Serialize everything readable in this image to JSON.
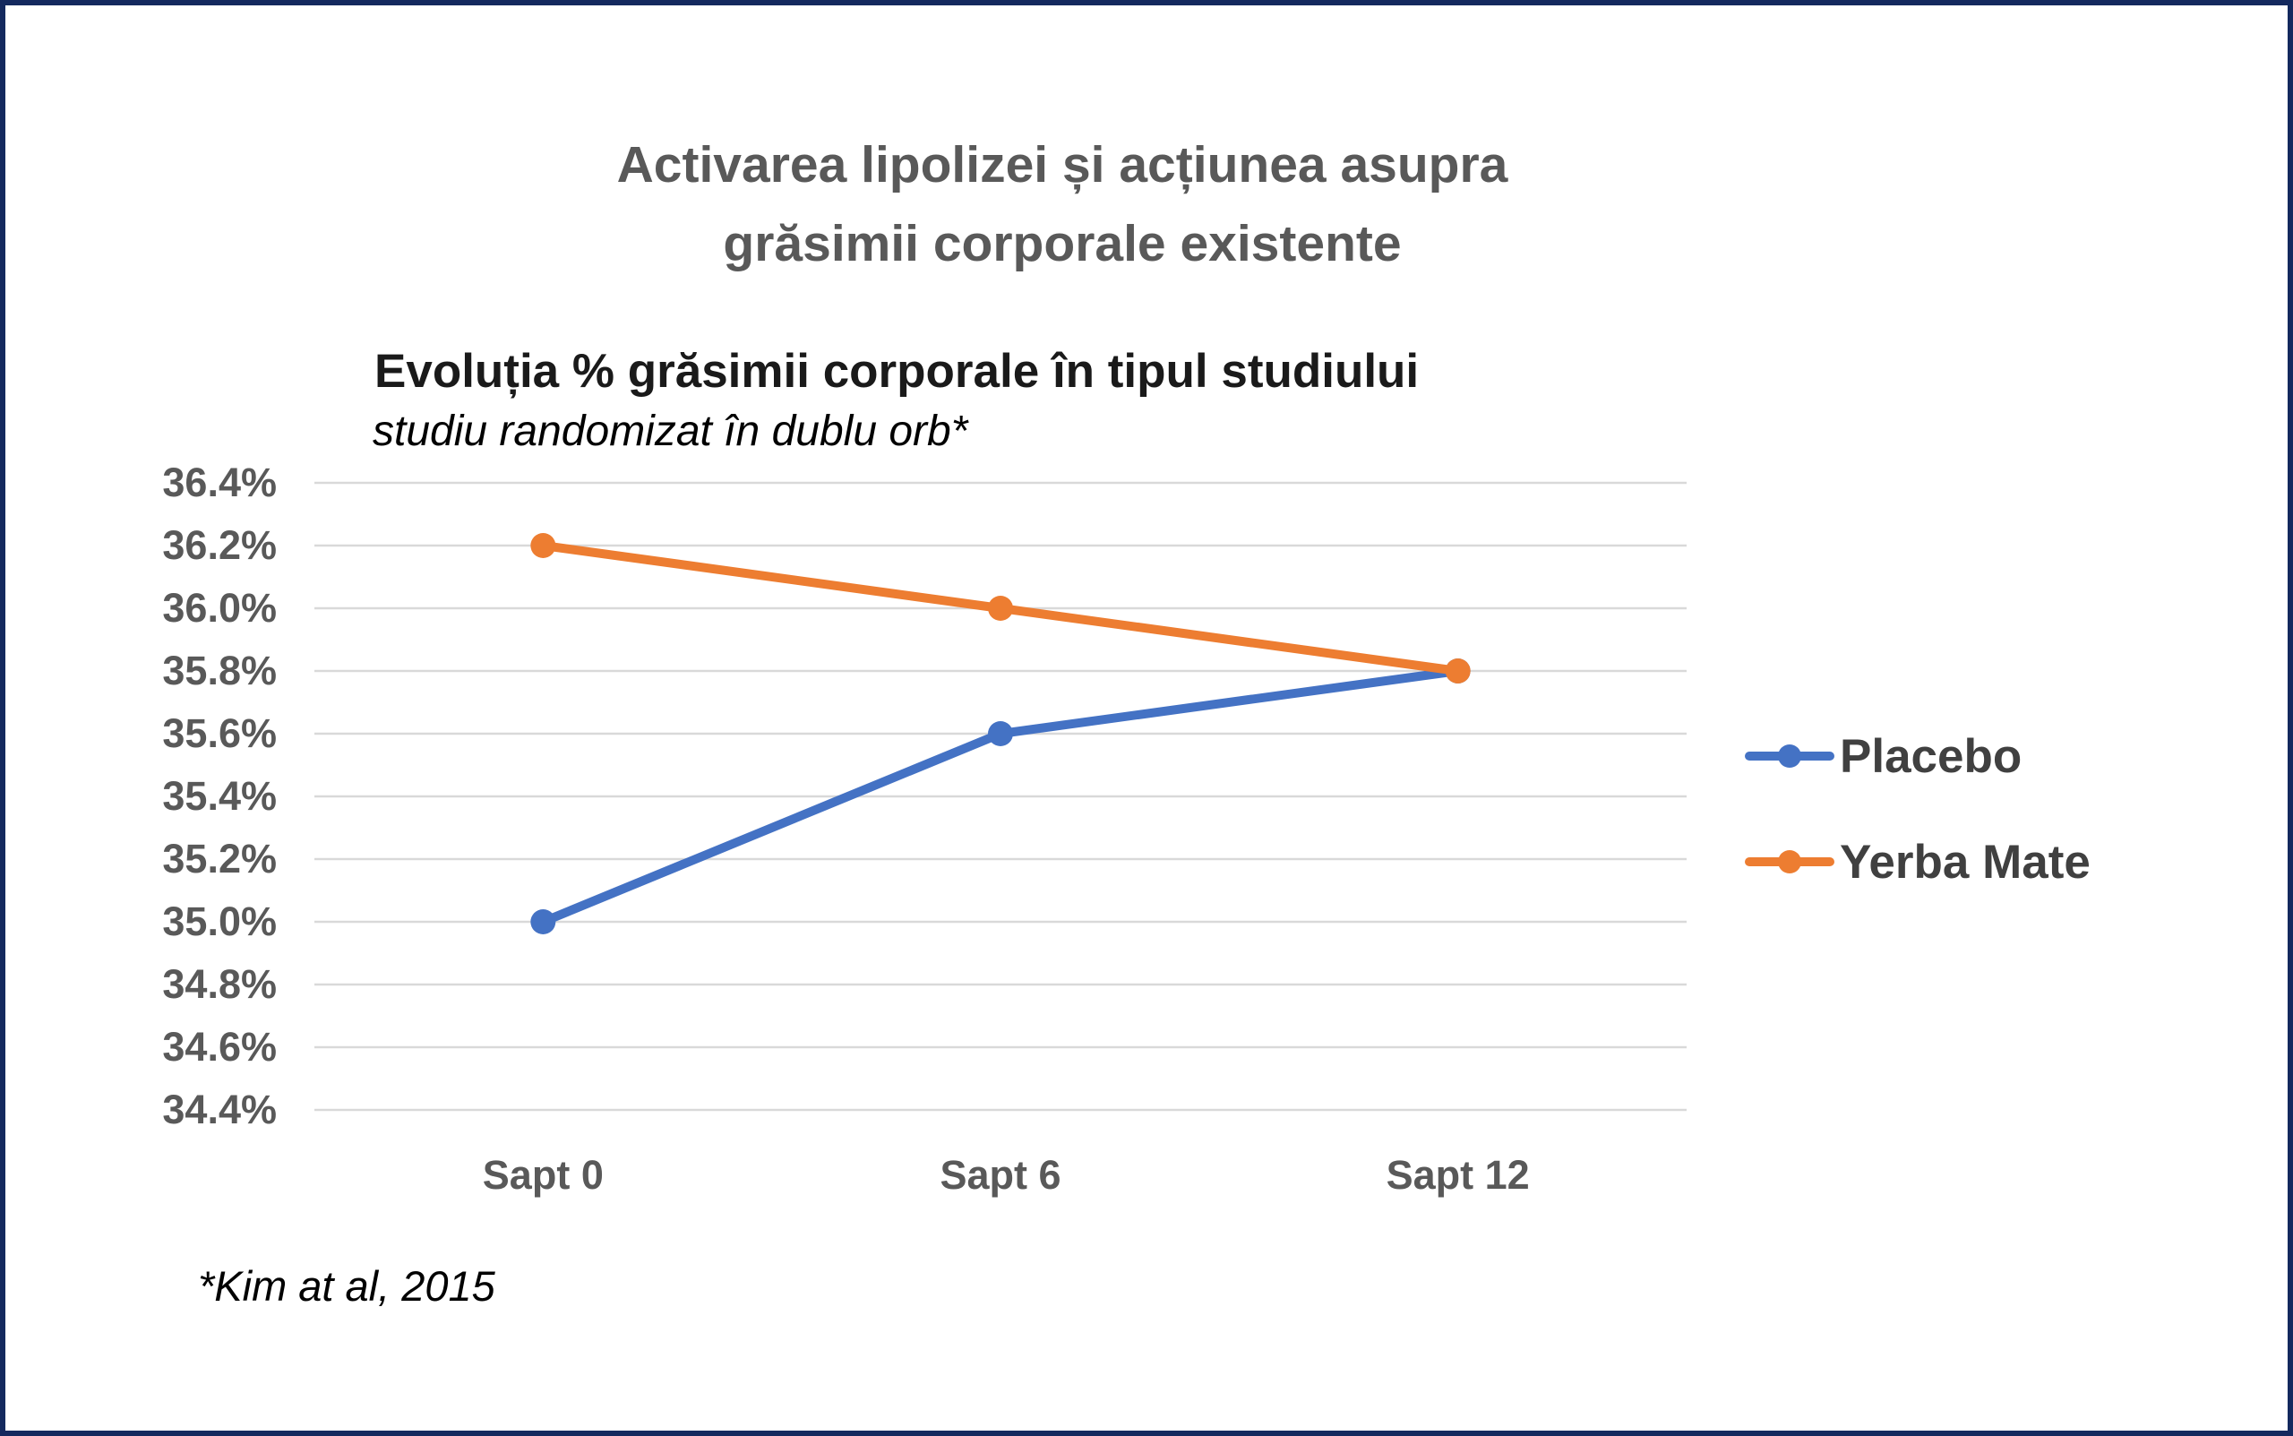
{
  "main_title": "Activarea lipolizei și acțiunea asupra\ngrăsimii corporale existente",
  "footnote": "*Kim at al, 2015",
  "colors": {
    "frame_border": "#14295E",
    "gridline": "#D9D9D9",
    "axis_text": "#595959",
    "placebo_blue": "#4472C4",
    "yerba_mate_orange": "#ED7D31"
  },
  "chart_data": {
    "type": "line",
    "title": "Evoluția % grăsimii corporale în tipul studiului",
    "subtitle": "studiu randomizat în dublu orb*",
    "categories": [
      "Sapt 0",
      "Sapt 6",
      "Sapt 12"
    ],
    "series": [
      {
        "name": "Placebo",
        "color": "#4472C4",
        "values": [
          35.0,
          35.6,
          35.8
        ]
      },
      {
        "name": "Yerba Mate",
        "color": "#ED7D31",
        "values": [
          36.2,
          36.0,
          35.8
        ]
      }
    ],
    "y_axis": {
      "min": 34.4,
      "max": 36.4,
      "step": 0.2,
      "tick_labels": [
        "36.4%",
        "36.2%",
        "36.0%",
        "35.8%",
        "35.6%",
        "35.4%",
        "35.2%",
        "35.0%",
        "34.8%",
        "34.6%",
        "34.4%"
      ]
    },
    "grid": true,
    "legend_position": "right"
  }
}
